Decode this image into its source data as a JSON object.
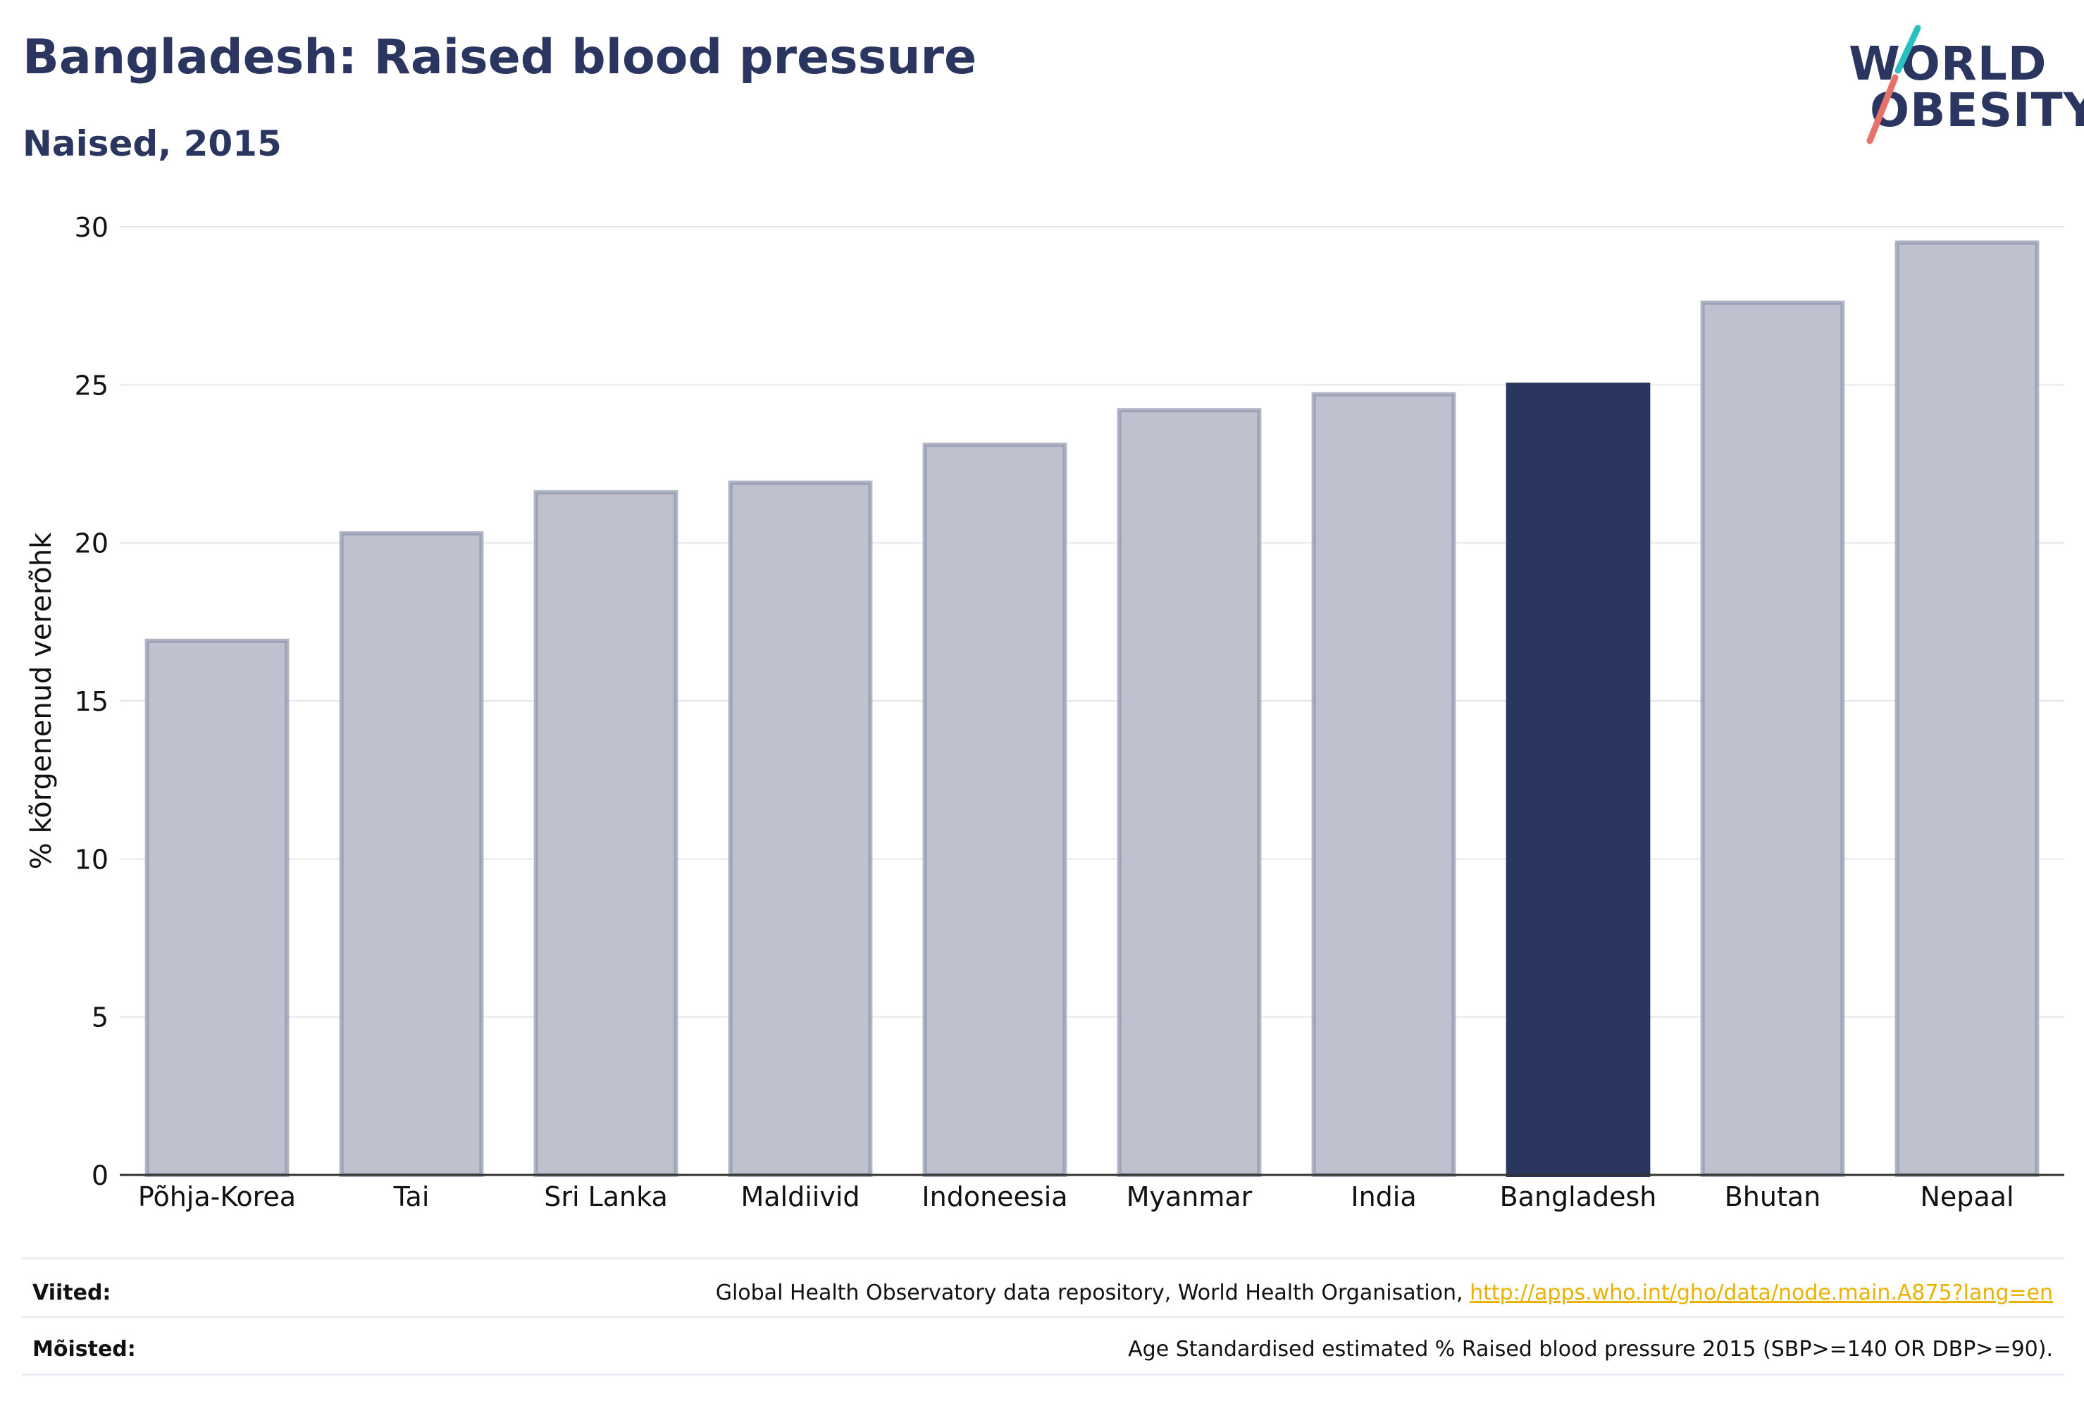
{
  "header": {
    "title": "Bangladesh: Raised blood pressure",
    "subtitle": "Naised, 2015"
  },
  "logo": {
    "line1": "WORLD",
    "line2": "OBESITY",
    "colors": {
      "text": "#2a3560",
      "slash_top": "#2bbfc0",
      "slash_bottom": "#e8706a"
    }
  },
  "chart_data": {
    "type": "bar",
    "categories": [
      "Põhja-Korea",
      "Tai",
      "Sri Lanka",
      "Maldiivid",
      "Indoneesia",
      "Myanmar",
      "India",
      "Bangladesh",
      "Bhutan",
      "Nepaal"
    ],
    "values": [
      16.9,
      20.3,
      21.6,
      21.9,
      23.1,
      24.2,
      24.7,
      25.0,
      27.6,
      29.5
    ],
    "highlight": "Bangladesh",
    "ylabel": "% kõrgenenud vererõhk",
    "xlabel": "",
    "ylim": [
      0,
      30
    ],
    "yticks": [
      0,
      5,
      10,
      15,
      20,
      25,
      30
    ],
    "grid": true,
    "colors": {
      "bar_fill": "#bfc2ce",
      "bar_stroke": "#8f96ae",
      "highlight_fill": "#2a3560",
      "grid": "#e6e8ee",
      "axis": "#333333"
    }
  },
  "footer": {
    "sources_label": "Viited:",
    "sources_text": "Global Health Observatory data repository, World Health Organisation,",
    "sources_link": "http://apps.who.int/gho/data/node.main.A875?lang=en",
    "definitions_label": "Mõisted:",
    "definitions_text": "Age Standardised estimated % Raised blood pressure 2015 (SBP>=140 OR DBP>=90)."
  }
}
